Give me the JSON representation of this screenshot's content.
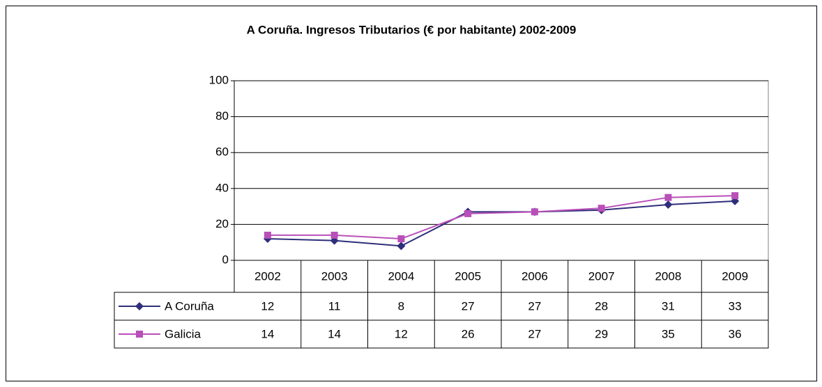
{
  "chart_data": {
    "type": "line",
    "title": "A Coruña. Ingresos Tributarios (€ por habitante) 2002-2009",
    "categories": [
      "2002",
      "2003",
      "2004",
      "2005",
      "2006",
      "2007",
      "2008",
      "2009"
    ],
    "series": [
      {
        "name": "A Coruña",
        "color": "#2e2e7a",
        "marker": "diamond",
        "values": [
          12,
          11,
          8,
          27,
          27,
          28,
          31,
          33
        ]
      },
      {
        "name": "Galicia",
        "color": "#b94fb9",
        "marker": "square",
        "values": [
          14,
          14,
          12,
          26,
          27,
          29,
          35,
          36
        ]
      }
    ],
    "ylim": [
      0,
      100
    ],
    "yticks": [
      0,
      20,
      40,
      60,
      80,
      100
    ],
    "grid": true,
    "data_table": true
  }
}
